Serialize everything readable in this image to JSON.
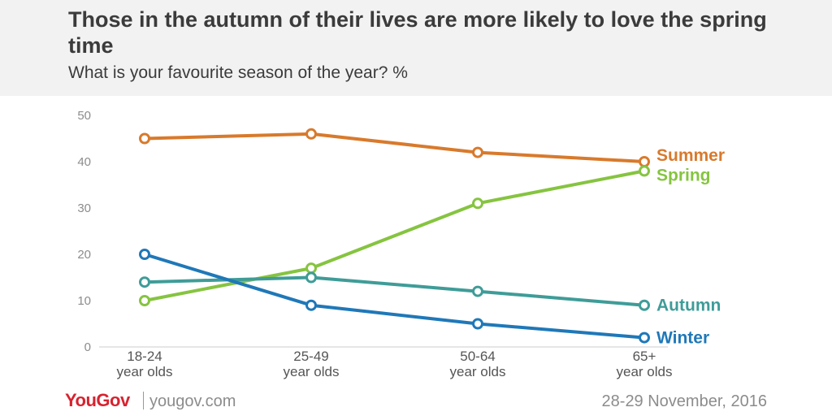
{
  "header": {
    "title": "Those in the autumn of their lives are more likely to love the spring time",
    "subtitle": "What is your favourite season of the year? %"
  },
  "footer": {
    "logo": "YouGov",
    "url": "yougov.com",
    "date": "28-29 November, 2016"
  },
  "chart_data": {
    "type": "line",
    "categories": [
      [
        "18-24",
        "year olds"
      ],
      [
        "25-49",
        "year olds"
      ],
      [
        "50-64",
        "year olds"
      ],
      [
        "65+",
        "year olds"
      ]
    ],
    "ylim": [
      0,
      50
    ],
    "yticks": [
      0,
      10,
      20,
      30,
      40,
      50
    ],
    "grid": false,
    "legend": "direct labels at line ends",
    "series": [
      {
        "name": "Summer",
        "color": "#d87a2c",
        "values": [
          45,
          46,
          42,
          40
        ]
      },
      {
        "name": "Spring",
        "color": "#86c440",
        "values": [
          10,
          17,
          31,
          38
        ]
      },
      {
        "name": "Autumn",
        "color": "#3f9c98",
        "values": [
          14,
          15,
          12,
          9
        ]
      },
      {
        "name": "Winter",
        "color": "#1f78b8",
        "values": [
          20,
          9,
          5,
          2
        ]
      }
    ]
  }
}
